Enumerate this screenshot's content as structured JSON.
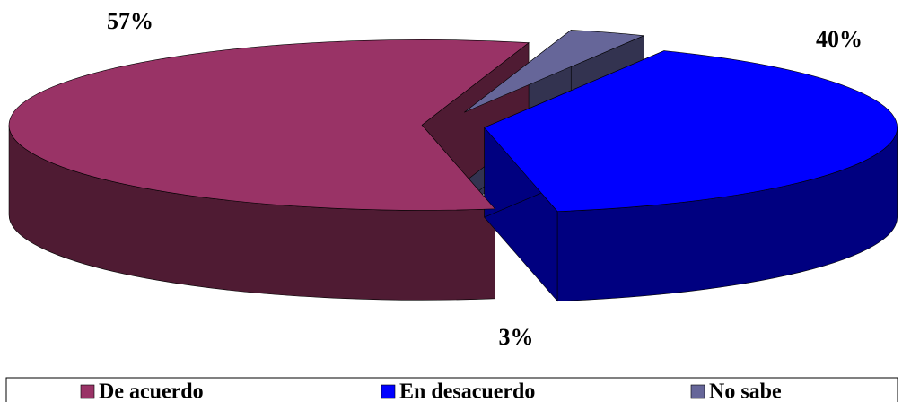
{
  "chart_data": {
    "type": "pie3d",
    "categories": [
      "De acuerdo",
      "En desacuerdo",
      "No sabe"
    ],
    "values": [
      57,
      40,
      3
    ],
    "value_labels": [
      "57%",
      "40%",
      "3%"
    ],
    "colors": [
      "#993366",
      "#0000ff",
      "#666699"
    ],
    "side_colors": [
      "#4f1b33",
      "#000080",
      "#333350"
    ],
    "legend": "bottom"
  }
}
